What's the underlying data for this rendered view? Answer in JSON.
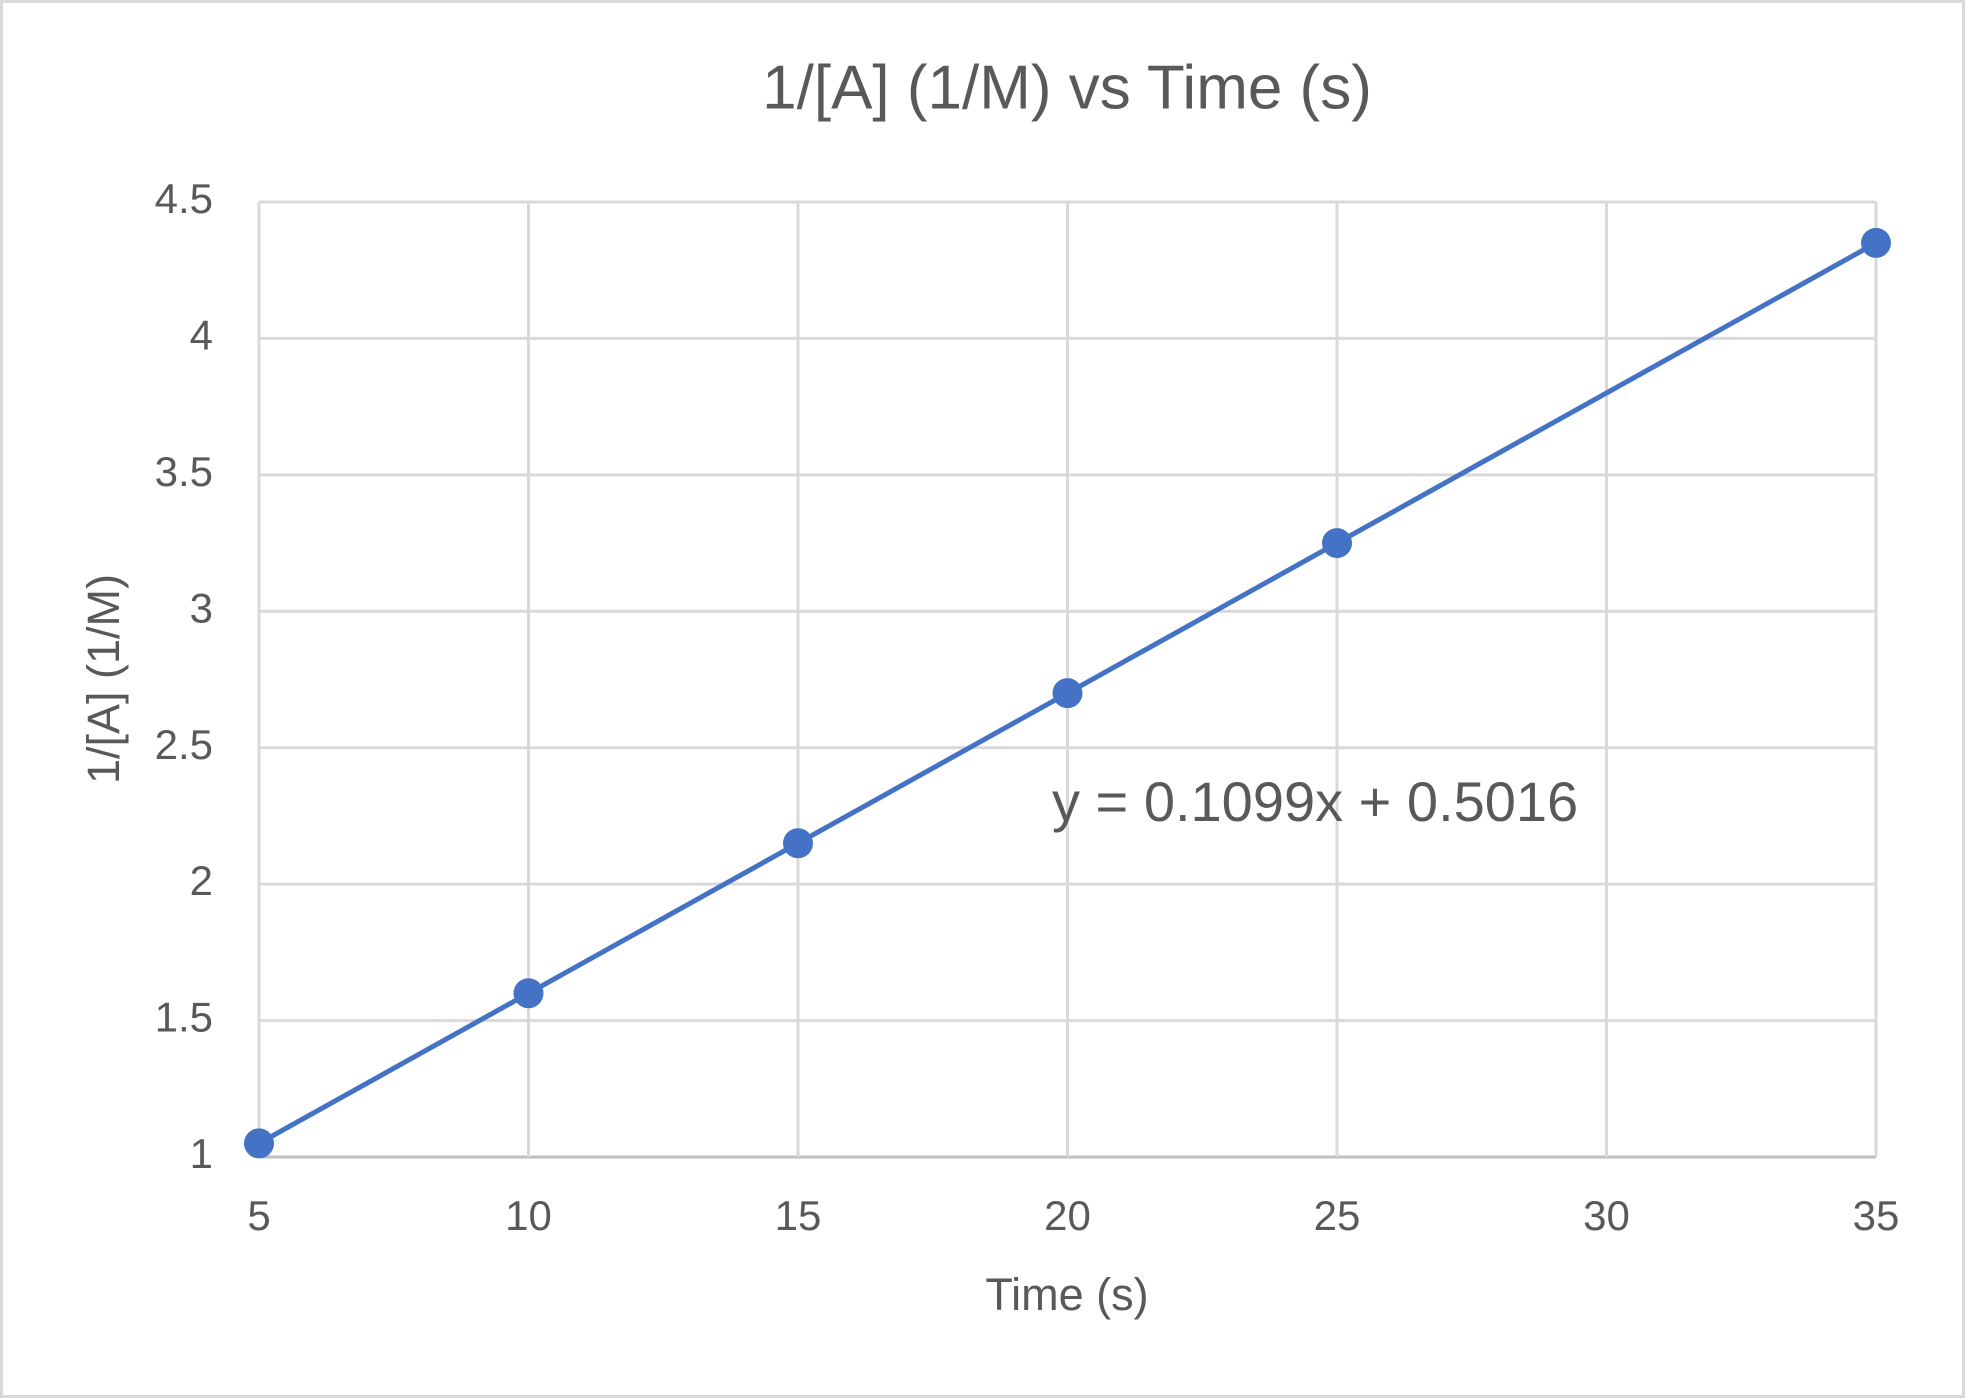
{
  "chart_data": {
    "type": "scatter",
    "title": "1/[A] (1/M) vs Time (s)",
    "x_label": "Time (s)",
    "y_label": "1/[A] (1/M)",
    "x": [
      5,
      10,
      15,
      20,
      25,
      35
    ],
    "values": [
      1.05,
      1.6,
      2.15,
      2.7,
      3.25,
      4.35
    ],
    "color": "#4472c4",
    "line": true,
    "annotation": "y = 0.1099x + 0.5016",
    "xlim": [
      5,
      35
    ],
    "xticks": [
      5,
      10,
      15,
      20,
      25,
      30,
      35
    ],
    "ylim": [
      1,
      4.5
    ],
    "yticks": [
      1,
      1.5,
      2,
      2.5,
      3,
      3.5,
      4,
      4.5
    ],
    "grid": true
  }
}
